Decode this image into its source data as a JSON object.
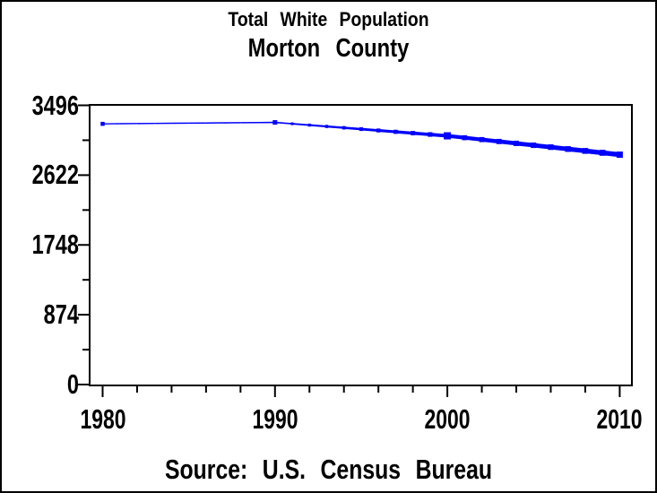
{
  "chart_data": {
    "type": "line",
    "title": "Total White Population",
    "subtitle": "Morton County",
    "source_note": "Source: U.S. Census Bureau",
    "xlabel": "",
    "ylabel": "",
    "series": [
      {
        "name": "Total White Population",
        "x": [
          1980,
          1990,
          2000,
          2010
        ],
        "values": [
          3264,
          3282,
          3114,
          2878
        ],
        "color": "#0000FF",
        "marker": "square",
        "note": "line drawn thin at 1980-1990, progressively thicker toward 2010"
      }
    ],
    "x_ticks": [
      1980,
      1990,
      2000,
      2010
    ],
    "x_minor_tick_step_years": 2,
    "y_ticks": [
      0,
      874,
      1748,
      2622,
      3496
    ],
    "ylim": [
      0,
      3496
    ],
    "xlim": [
      1980,
      2010
    ],
    "grid": false,
    "legend": "none"
  },
  "colors": {
    "background": "#FFFFFF",
    "frame": "#000000",
    "text": "#000000",
    "line": "#0000FF"
  }
}
